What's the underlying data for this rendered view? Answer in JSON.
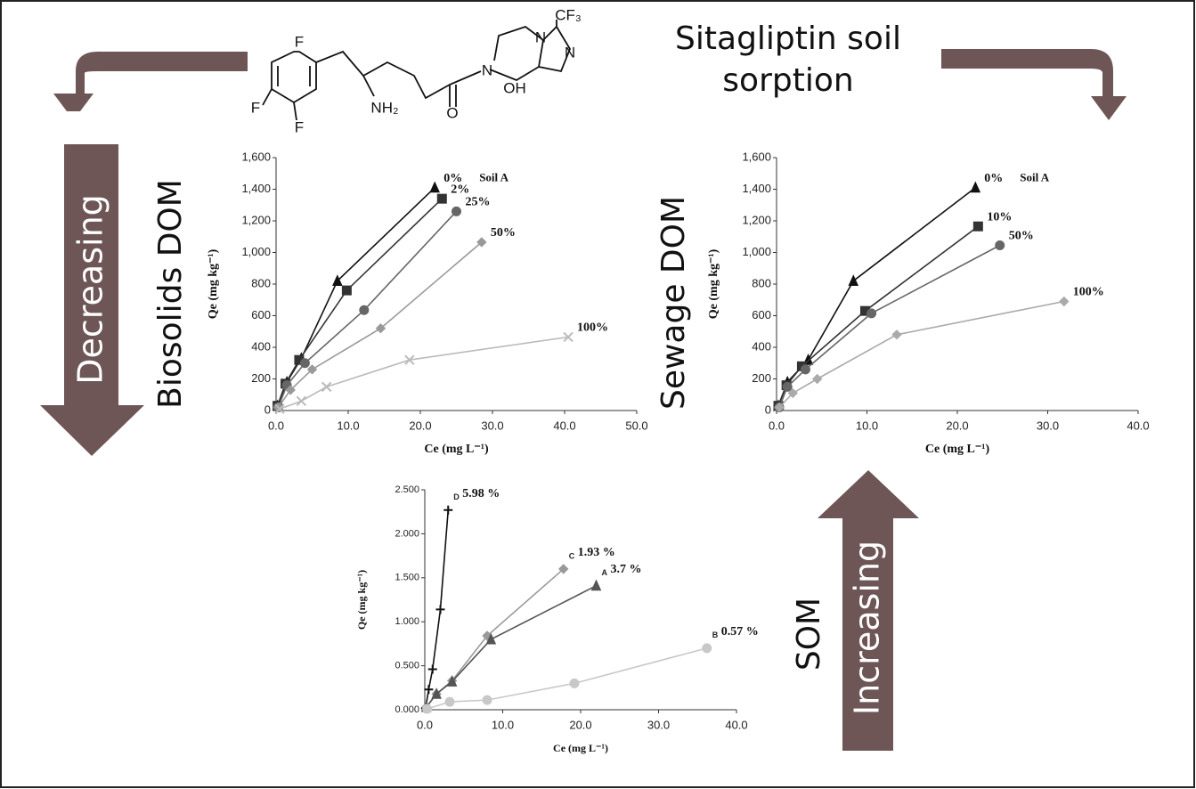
{
  "title_lines": [
    "Sitagliptin soil",
    "sorption"
  ],
  "left_label": "Biosolids DOM",
  "left_arrow": "Decreasing",
  "right_label": "Sewage DOM",
  "right_arrow": "Increasing",
  "bottom_label": "SOM",
  "molecule": {
    "f1": "F",
    "f2": "F",
    "f3": "F",
    "amine": "NH₂",
    "oxo": "O",
    "hydroxy": "OH",
    "n1": "N",
    "n2": "N",
    "n3": "N",
    "cf3": "CF₃"
  },
  "chart_data": [
    {
      "type": "scatter",
      "xlabel": "Ce (mg L⁻¹)",
      "ylabel": "Qe (mg kg⁻¹)",
      "annotation": "Soil A",
      "xlim": [
        0,
        50
      ],
      "ylim": [
        0,
        1600
      ],
      "xticks": [
        {
          "value": 0,
          "label": "0.0"
        },
        {
          "value": 10,
          "label": "10.0"
        },
        {
          "value": 20,
          "label": "20.0"
        },
        {
          "value": 30,
          "label": "30.0"
        },
        {
          "value": 40,
          "label": "40.0"
        },
        {
          "value": 50,
          "label": "50.0"
        }
      ],
      "yticks": [
        0,
        200,
        400,
        600,
        800,
        {
          "value": 1000,
          "label": "1,000"
        },
        {
          "value": 1200,
          "label": "1,200"
        },
        {
          "value": 1400,
          "label": "1,400"
        },
        {
          "value": 1600,
          "label": "1,600"
        }
      ],
      "series": [
        {
          "name": "0%",
          "color": "#111111",
          "marker": "triangle",
          "x": [
            0.2,
            1.5,
            3.5,
            8.5,
            22
          ],
          "values": [
            30,
            180,
            330,
            820,
            1410
          ]
        },
        {
          "name": "2%",
          "color": "#333333",
          "marker": "square",
          "x": [
            0.2,
            1.3,
            3.2,
            9.8,
            23
          ],
          "values": [
            30,
            170,
            320,
            760,
            1340
          ]
        },
        {
          "name": "25%",
          "color": "#666666",
          "marker": "circle",
          "x": [
            0.3,
            1.5,
            4,
            12.2,
            25
          ],
          "values": [
            20,
            160,
            300,
            635,
            1260
          ]
        },
        {
          "name": "50%",
          "color": "#999999",
          "marker": "diamond",
          "x": [
            0.3,
            2,
            5,
            14.5,
            28.5
          ],
          "values": [
            20,
            130,
            260,
            520,
            1065
          ]
        },
        {
          "name": "100%",
          "color": "#bbbbbb",
          "marker": "x",
          "x": [
            0.5,
            3.5,
            7,
            18.5,
            40.5
          ],
          "values": [
            10,
            60,
            150,
            320,
            465
          ]
        }
      ]
    },
    {
      "type": "scatter",
      "xlabel": "Ce (mg L⁻¹)",
      "ylabel": "Qe (mg kg⁻¹)",
      "annotation": "Soil A",
      "xlim": [
        0,
        40
      ],
      "ylim": [
        0,
        1600
      ],
      "xticks": [
        {
          "value": 0,
          "label": "0.0"
        },
        {
          "value": 10,
          "label": "10.0"
        },
        {
          "value": 20,
          "label": "20.0"
        },
        {
          "value": 30,
          "label": "30.0"
        },
        {
          "value": 40,
          "label": "40.0"
        }
      ],
      "yticks": [
        0,
        200,
        400,
        600,
        800,
        {
          "value": 1000,
          "label": "1,000"
        },
        {
          "value": 1200,
          "label": "1,200"
        },
        {
          "value": 1400,
          "label": "1,400"
        },
        {
          "value": 1600,
          "label": "1,600"
        }
      ],
      "series": [
        {
          "name": "0%",
          "color": "#111111",
          "marker": "triangle",
          "x": [
            0.2,
            1.2,
            3.5,
            8.5,
            22
          ],
          "values": [
            30,
            180,
            320,
            820,
            1410
          ]
        },
        {
          "name": "10%",
          "color": "#333333",
          "marker": "square",
          "x": [
            0.2,
            1.1,
            2.8,
            9.8,
            22.3
          ],
          "values": [
            30,
            160,
            280,
            630,
            1165
          ]
        },
        {
          "name": "50%",
          "color": "#666666",
          "marker": "circle",
          "x": [
            0.3,
            1.2,
            3.2,
            10.5,
            24.7
          ],
          "values": [
            20,
            150,
            260,
            615,
            1045
          ]
        },
        {
          "name": "100%",
          "color": "#aaaaaa",
          "marker": "diamond",
          "x": [
            0.3,
            1.8,
            4.5,
            13.3,
            31.8
          ],
          "values": [
            20,
            110,
            200,
            480,
            690
          ]
        }
      ]
    },
    {
      "type": "scatter",
      "xlabel": "Ce (mg L⁻¹)",
      "ylabel": "Qe (mg kg⁻¹)",
      "xlim": [
        0,
        40
      ],
      "ylim": [
        0,
        2.5
      ],
      "xticks": [
        {
          "value": 0,
          "label": "0.0"
        },
        {
          "value": 10,
          "label": "10.0"
        },
        {
          "value": 20,
          "label": "20.0"
        },
        {
          "value": 30,
          "label": "30.0"
        },
        {
          "value": 40,
          "label": "40.0"
        }
      ],
      "yticks": [
        {
          "value": 0,
          "label": "0.000"
        },
        {
          "value": 0.5,
          "label": "0.500"
        },
        {
          "value": 1,
          "label": "1.000"
        },
        {
          "value": 1.5,
          "label": "1.500"
        },
        {
          "value": 2,
          "label": "2.000"
        },
        {
          "value": 2.5,
          "label": "2.500"
        }
      ],
      "series": [
        {
          "name": "5.98 %",
          "tag": "D",
          "color": "#111111",
          "marker": "plus",
          "x": [
            0.1,
            0.5,
            1,
            2,
            3
          ],
          "values": [
            0.02,
            0.23,
            0.46,
            1.14,
            2.27
          ]
        },
        {
          "name": "1.93 %",
          "tag": "C",
          "color": "#999999",
          "marker": "diamond",
          "x": [
            0.2,
            1.5,
            3.5,
            8,
            17.8
          ],
          "values": [
            0.03,
            0.18,
            0.33,
            0.84,
            1.6
          ]
        },
        {
          "name": "3.7 %",
          "tag": "A",
          "color": "#555555",
          "marker": "triangle",
          "x": [
            0.2,
            1.5,
            3.5,
            8.5,
            22
          ],
          "values": [
            0.03,
            0.18,
            0.32,
            0.8,
            1.41
          ]
        },
        {
          "name": "0.57 %",
          "tag": "B",
          "color": "#c8c8c8",
          "marker": "circle",
          "x": [
            0.3,
            3.2,
            8,
            19.2,
            36.2
          ],
          "values": [
            0.01,
            0.09,
            0.11,
            0.3,
            0.7
          ]
        }
      ]
    }
  ]
}
